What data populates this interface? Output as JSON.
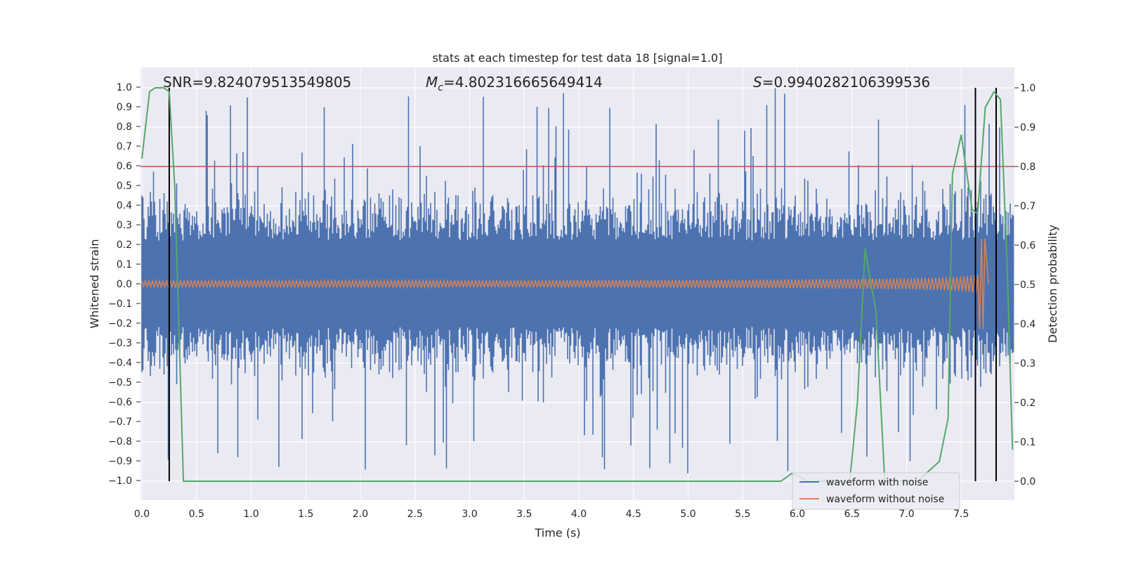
{
  "chart_data": {
    "type": "line",
    "title": "stats at each timestep for test data 18 [signal=1.0]",
    "xlabel": "Time (s)",
    "ylabel": "Whitened strain",
    "y2label": "Detection probability",
    "xlim": [
      0.0,
      8.0
    ],
    "ylim": [
      -1.1,
      1.1
    ],
    "y2lim": [
      -0.05,
      1.05
    ],
    "xticks": [
      "0.0",
      "0.5",
      "1.0",
      "1.5",
      "2.0",
      "2.5",
      "3.0",
      "3.5",
      "4.0",
      "4.5",
      "5.0",
      "5.5",
      "6.0",
      "6.5",
      "7.0",
      "7.5"
    ],
    "yticks": [
      "1.0",
      "0.9",
      "0.8",
      "0.7",
      "0.6",
      "0.5",
      "0.4",
      "0.3",
      "0.2",
      "0.1",
      "0.0",
      "−0.1",
      "−0.2",
      "−0.3",
      "−0.4",
      "−0.5",
      "−0.6",
      "−0.7",
      "−0.8",
      "−0.9",
      "−1.0"
    ],
    "y2ticks": [
      "1.0",
      "0.9",
      "0.8",
      "0.7",
      "0.6",
      "0.5",
      "0.4",
      "0.3",
      "0.2",
      "0.1",
      "0.0"
    ],
    "annotations": {
      "snr": "SNR=9.824079513549805",
      "mc_symbol": "M",
      "mc_sub": "c",
      "mc_value": "=4.802316665649414",
      "s_symbol": "S",
      "s_value": "=0.9940282106399536"
    },
    "threshold": 0.8,
    "vertical_lines": [
      0.25,
      7.63,
      7.82
    ],
    "legend": {
      "position": "lower-right",
      "entries": [
        "waveform with noise",
        "waveform without noise"
      ]
    },
    "colors": {
      "noise": "#4c72b0",
      "clean": "#dd8452",
      "probability": "#55a868",
      "threshold": "#c44e52",
      "vline": "#000000",
      "background": "#eaeaf2",
      "grid": "#ffffff"
    },
    "series": [
      {
        "name": "waveform with noise",
        "description": "noisy whitened strain, amplitude mostly within ±0.5 with peaks near ±1.0"
      },
      {
        "name": "waveform without noise",
        "description": "chirp signal, amplitude ~0.02 at t=0 growing to ~0.23 at t≈7.7 s"
      },
      {
        "name": "detection probability",
        "axis": "right",
        "x": [
          0.0,
          0.07,
          0.12,
          0.2,
          0.25,
          0.3,
          0.38,
          1.4,
          5.1,
          5.85,
          5.95,
          6.1,
          6.3,
          6.48,
          6.55,
          6.62,
          6.72,
          6.8,
          6.95,
          7.1,
          7.3,
          7.38,
          7.42,
          7.5,
          7.6,
          7.65,
          7.72,
          7.8,
          7.86,
          7.92,
          7.97
        ],
        "y": [
          0.82,
          0.99,
          1.0,
          1.0,
          0.99,
          0.75,
          0.0,
          0.0,
          0.0,
          0.0,
          0.02,
          0.0,
          0.0,
          0.0,
          0.2,
          0.59,
          0.43,
          0.0,
          0.0,
          0.0,
          0.05,
          0.16,
          0.78,
          0.88,
          0.69,
          0.68,
          0.95,
          0.99,
          0.97,
          0.55,
          0.08
        ]
      }
    ]
  }
}
